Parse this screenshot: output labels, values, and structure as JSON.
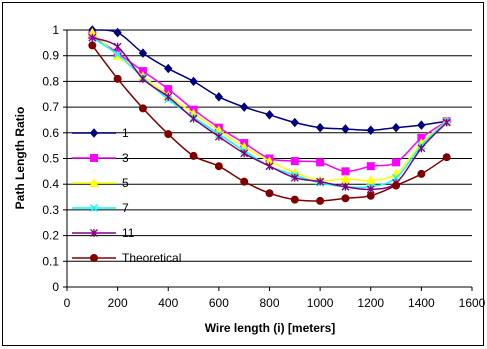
{
  "chart_data": {
    "type": "line",
    "xlabel": "Wire length (i) [meters]",
    "ylabel": "Path Length Ratio",
    "xlim": [
      0,
      1600
    ],
    "ylim": [
      0,
      1
    ],
    "xticks": [
      "0",
      "200",
      "400",
      "600",
      "800",
      "1000",
      "1200",
      "1400",
      "1600"
    ],
    "yticks": [
      "0",
      "0.1",
      "0.2",
      "0.3",
      "0.4",
      "0.5",
      "0.6",
      "0.7",
      "0.8",
      "0.9",
      "1"
    ],
    "grid": "horizontal",
    "legend_position": "left",
    "x": [
      100,
      200,
      300,
      400,
      500,
      600,
      700,
      800,
      900,
      1000,
      1100,
      1200,
      1300,
      1400,
      1500
    ],
    "series": [
      {
        "name": "1",
        "color": "#000080",
        "marker": "diamond",
        "values": [
          1.0,
          0.99,
          0.91,
          0.85,
          0.8,
          0.74,
          0.7,
          0.67,
          0.64,
          0.62,
          0.615,
          0.61,
          0.62,
          0.63,
          0.645
        ]
      },
      {
        "name": "3",
        "color": "#ff00ff",
        "marker": "square",
        "values": [
          0.98,
          0.91,
          0.84,
          0.77,
          0.69,
          0.62,
          0.56,
          0.5,
          0.49,
          0.485,
          0.45,
          0.47,
          0.485,
          0.58,
          0.645
        ]
      },
      {
        "name": "5",
        "color": "#ffff00",
        "marker": "triangle",
        "values": [
          0.99,
          0.9,
          0.82,
          0.745,
          0.675,
          0.61,
          0.545,
          0.49,
          0.445,
          0.415,
          0.42,
          0.415,
          0.44,
          0.56,
          0.645
        ]
      },
      {
        "name": "7",
        "color": "#00ffff",
        "marker": "x",
        "values": [
          0.97,
          0.905,
          0.815,
          0.73,
          0.66,
          0.595,
          0.53,
          0.47,
          0.435,
          0.405,
          0.39,
          0.39,
          0.425,
          0.55,
          0.645
        ]
      },
      {
        "name": "11",
        "color": "#800080",
        "marker": "star",
        "values": [
          0.97,
          0.935,
          0.81,
          0.74,
          0.655,
          0.585,
          0.52,
          0.47,
          0.425,
          0.41,
          0.39,
          0.38,
          0.405,
          0.54,
          0.64
        ]
      },
      {
        "name": "Theoretical",
        "color": "#800000",
        "marker": "circle",
        "values": [
          0.94,
          0.81,
          0.695,
          0.595,
          0.51,
          0.47,
          0.41,
          0.365,
          0.34,
          0.335,
          0.345,
          0.355,
          0.395,
          0.44,
          0.505
        ]
      }
    ]
  }
}
